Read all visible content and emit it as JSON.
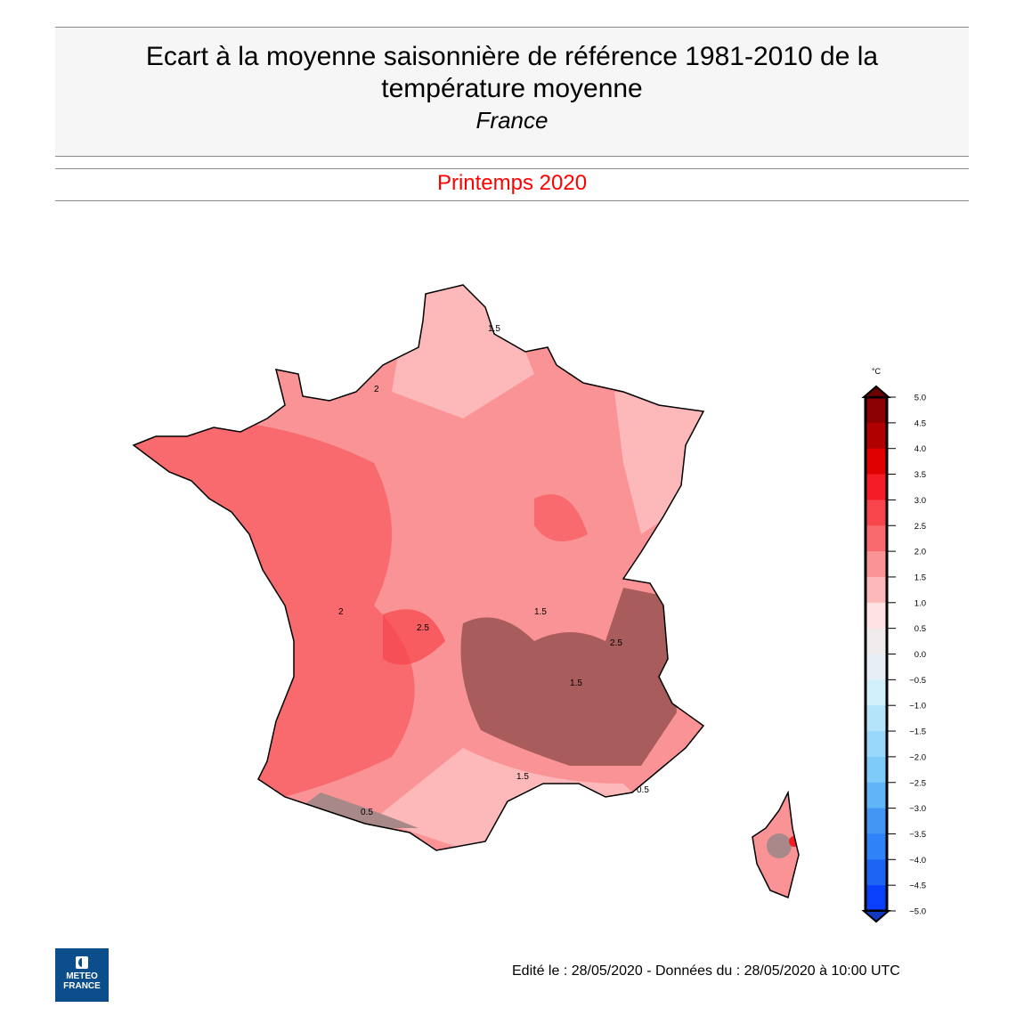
{
  "header": {
    "title_line1": "Ecart à la moyenne saisonnière de référence 1981-2010 de la",
    "title_line2": "température moyenne",
    "subtitle": "France"
  },
  "season": "Printemps 2020",
  "legend": {
    "unit": "°C",
    "ticks": [
      "5.0",
      "4.5",
      "4.0",
      "3.5",
      "3.0",
      "2.5",
      "2.0",
      "1.5",
      "1.0",
      "0.5",
      "0.0",
      "−0.5",
      "−1.0",
      "−1.5",
      "−2.0",
      "−2.5",
      "−3.0",
      "−3.5",
      "−4.0",
      "−4.5",
      "−5.0"
    ],
    "colors": [
      "#8b0000",
      "#b00000",
      "#e00000",
      "#f51c24",
      "#f7454b",
      "#f86a6e",
      "#fa9395",
      "#fdb8ba",
      "#fee2e4",
      "#f0ecee",
      "#e8eef6",
      "#d2f0fc",
      "#b4e4fa",
      "#9ad8fa",
      "#7ecbfa",
      "#60b4f8",
      "#4496f4",
      "#2f82f8",
      "#1e64f4",
      "#0a40fc"
    ]
  },
  "map": {
    "contour_labels": [
      "1.5",
      "2",
      "2.5",
      "1.5",
      "2",
      "1.5",
      "0.5",
      "1.5",
      "2.5",
      "0.5"
    ]
  },
  "footer": "Edité le : 28/05/2020 - Données du : 28/05/2020 à 10:00 UTC",
  "logo": {
    "line1": "METEO",
    "line2": "FRANCE"
  }
}
